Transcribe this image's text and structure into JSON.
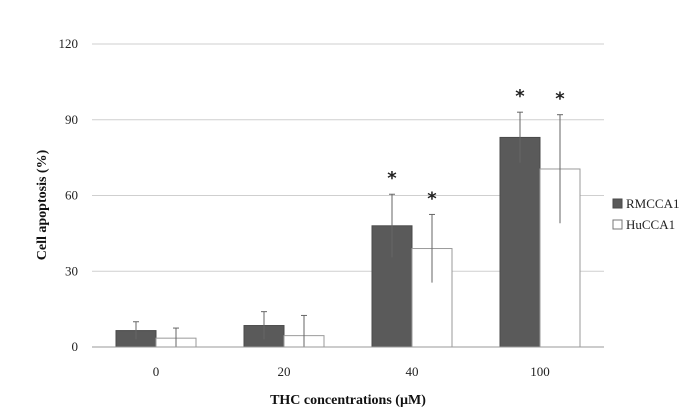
{
  "chart_data": {
    "type": "bar",
    "xlabel": "THC concentrations (µM)",
    "ylabel": "Cell apoptosis (%)",
    "ylim": [
      0,
      120
    ],
    "yticks": [
      "0",
      "30",
      "60",
      "90",
      "120"
    ],
    "categories": [
      "0",
      "20",
      "40",
      "100"
    ],
    "series": [
      {
        "name": "RMCCA1",
        "color": "#5a5a5a",
        "values": [
          6.5,
          8.5,
          48,
          83
        ],
        "errors": [
          3.5,
          5.5,
          12.5,
          10
        ],
        "significant": [
          false,
          false,
          true,
          true
        ]
      },
      {
        "name": "HuCCA1",
        "color": "#ffffff",
        "values": [
          3.5,
          4.5,
          39,
          70.5
        ],
        "errors": [
          4,
          8,
          13.5,
          21.5
        ],
        "significant": [
          false,
          false,
          true,
          true
        ]
      }
    ],
    "significance_marker": "*",
    "grid": true,
    "legend_position": "right"
  }
}
